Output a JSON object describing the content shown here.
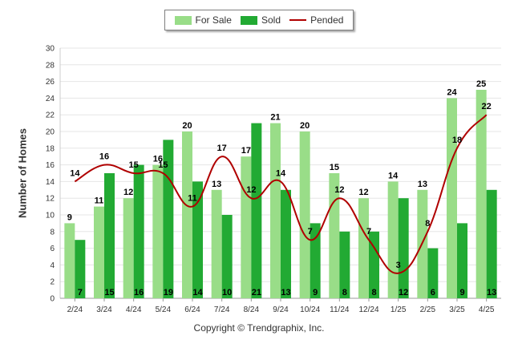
{
  "chart_data": {
    "type": "bar",
    "categories": [
      "2/24",
      "3/24",
      "4/24",
      "5/24",
      "6/24",
      "7/24",
      "8/24",
      "9/24",
      "10/24",
      "11/24",
      "12/24",
      "1/25",
      "2/25",
      "3/25",
      "4/25"
    ],
    "series": [
      {
        "name": "For Sale",
        "type": "bar",
        "color": "#99dd88",
        "values": [
          9,
          11,
          12,
          16,
          20,
          13,
          17,
          21,
          20,
          15,
          12,
          14,
          13,
          24,
          25
        ]
      },
      {
        "name": "Sold",
        "type": "bar",
        "color": "#22aa33",
        "values": [
          7,
          15,
          16,
          19,
          14,
          10,
          21,
          13,
          9,
          8,
          8,
          12,
          6,
          9,
          13
        ]
      },
      {
        "name": "Pended",
        "type": "line",
        "color": "#b00000",
        "values": [
          14,
          16,
          15,
          15,
          11,
          17,
          12,
          14,
          7,
          12,
          7,
          3,
          8,
          18,
          22
        ]
      }
    ],
    "xlabel": "",
    "ylabel": "Number of Homes",
    "ylim": [
      0,
      30
    ],
    "yticks": [
      0,
      2,
      4,
      6,
      8,
      10,
      12,
      14,
      16,
      18,
      20,
      22,
      24,
      26,
      28,
      30
    ],
    "grid": true,
    "legend_position": "top-center",
    "footer": "Copyright © Trendgraphix, Inc."
  }
}
